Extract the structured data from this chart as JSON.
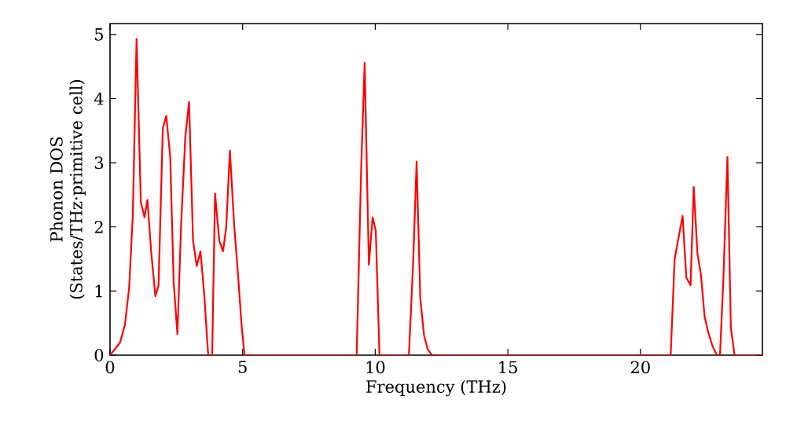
{
  "chart_data": {
    "type": "line",
    "xlabel": "Frequency (THz)",
    "ylabel": "Phonon DOS (States/THz·primitive cell)",
    "x": [
      0,
      0.37,
      0.56,
      0.72,
      0.86,
      1.0,
      1.16,
      1.3,
      1.41,
      1.55,
      1.71,
      1.83,
      1.99,
      2.12,
      2.27,
      2.4,
      2.54,
      2.68,
      2.84,
      2.98,
      3.13,
      3.27,
      3.41,
      3.55,
      3.69,
      3.71,
      3.85,
      3.96,
      4.12,
      4.26,
      4.38,
      4.52,
      4.68,
      4.82,
      4.96,
      5.07,
      9.3,
      9.47,
      9.6,
      9.76,
      9.9,
      10.02,
      10.16,
      11.27,
      11.43,
      11.56,
      11.7,
      11.84,
      11.98,
      12.14,
      21.14,
      21.29,
      21.45,
      21.59,
      21.73,
      21.89,
      22.01,
      22.15,
      22.28,
      22.42,
      22.56,
      22.72,
      22.88,
      23.0,
      23.13,
      23.28,
      23.41,
      23.55,
      24.6
    ],
    "series": [
      {
        "color": "#ff0000",
        "values": [
          0,
          0.19,
          0.47,
          1.05,
          2.19,
          4.93,
          2.39,
          2.15,
          2.42,
          1.62,
          0.92,
          1.09,
          3.54,
          3.73,
          3.09,
          1.13,
          0.33,
          2.03,
          3.41,
          3.95,
          1.78,
          1.39,
          1.62,
          0.96,
          0.07,
          0,
          0,
          2.52,
          1.78,
          1.62,
          1.99,
          3.19,
          2.03,
          1.29,
          0.47,
          0,
          0,
          2.92,
          4.56,
          1.41,
          2.15,
          1.94,
          0,
          0,
          1.45,
          3.02,
          0.88,
          0.31,
          0.09,
          0,
          0,
          1.5,
          1.86,
          2.17,
          1.21,
          1.09,
          2.62,
          1.58,
          1.26,
          0.6,
          0.35,
          0.14,
          0,
          0,
          1.21,
          3.09,
          0.43,
          0,
          0
        ]
      }
    ],
    "xlim": [
      0,
      24.6
    ],
    "ylim": [
      0,
      5.17
    ],
    "xticks": [
      0,
      5,
      10,
      15,
      20
    ],
    "yticks": [
      0,
      1,
      2,
      3,
      4,
      5
    ],
    "grid": false,
    "marker": "none",
    "line_style": "solid"
  }
}
